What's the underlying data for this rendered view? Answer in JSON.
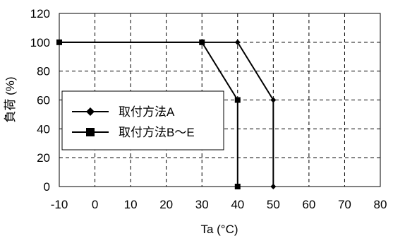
{
  "chart_data": {
    "type": "line",
    "xlabel": "Ta (°C)",
    "ylabel": "負荷 (%)",
    "xlim": [
      -10,
      80
    ],
    "ylim": [
      0,
      120
    ],
    "x_ticks": [
      "-10",
      "0",
      "10",
      "20",
      "30",
      "40",
      "50",
      "60",
      "70",
      "80"
    ],
    "y_ticks": [
      "0",
      "20",
      "40",
      "60",
      "80",
      "100",
      "120"
    ],
    "grid": true,
    "legend_position": "left-middle",
    "series": [
      {
        "name": "取付方法A",
        "marker": "diamond",
        "color": "#000000",
        "x": [
          -10,
          30,
          40,
          50,
          50
        ],
        "y": [
          100,
          100,
          100,
          60,
          0
        ]
      },
      {
        "name": "取付方法B～E",
        "marker": "square",
        "color": "#000000",
        "x": [
          -10,
          30,
          40,
          40
        ],
        "y": [
          100,
          100,
          60,
          0
        ]
      }
    ]
  }
}
